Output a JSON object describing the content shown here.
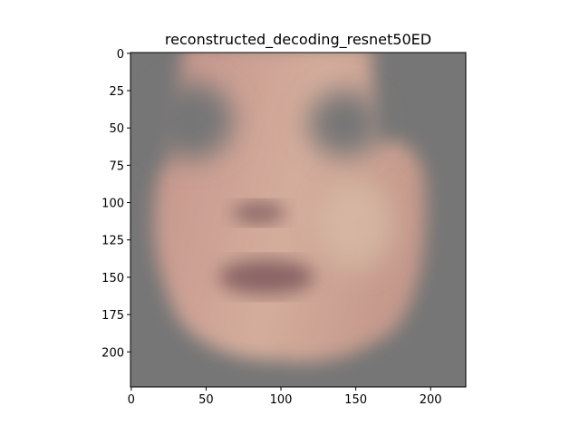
{
  "chart_data": {
    "type": "image",
    "title": "reconstructed_decoding_resnet50ED",
    "xlim": [
      -0.5,
      223.5
    ],
    "ylim": [
      223.5,
      -0.5
    ],
    "xticks": [
      0,
      50,
      100,
      150,
      200
    ],
    "yticks": [
      0,
      25,
      50,
      75,
      100,
      125,
      150,
      175,
      200
    ]
  }
}
